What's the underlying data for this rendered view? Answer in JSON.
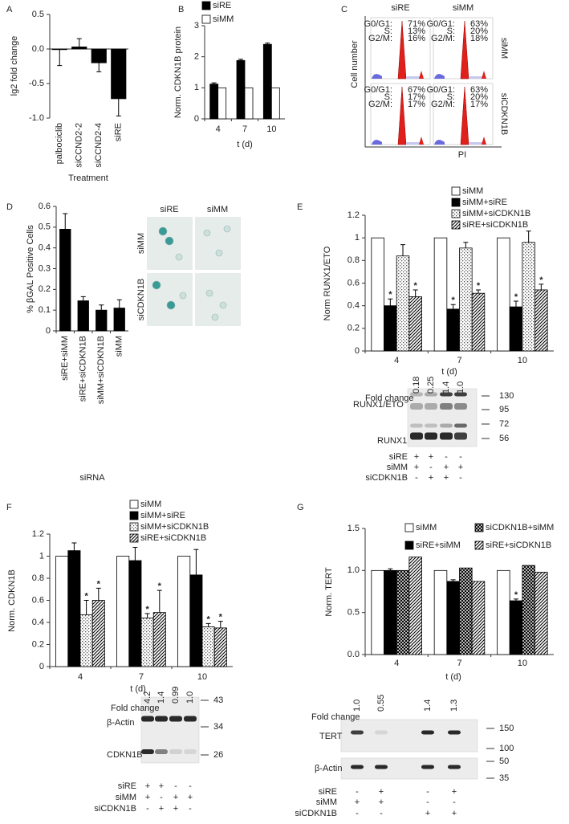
{
  "chart_data": [
    {
      "panel": "A",
      "type": "bar",
      "ylabel": "lg2 fold change",
      "xlabel": "Treatment",
      "categories": [
        "palbociclib",
        "siCCND2-2",
        "siCCND2-4",
        "siRE"
      ],
      "series": [
        {
          "color": "#000000",
          "values": [
            0,
            0.03,
            -0.2,
            -0.72
          ],
          "errors": [
            0.24,
            0.12,
            0.13,
            0.25
          ]
        }
      ],
      "ylim": [
        -1,
        0.5
      ],
      "yticks": [
        0.5,
        {
          "value": 0,
          "label": "0.0"
        },
        -0.5,
        {
          "value": -1,
          "label": "-1.0"
        }
      ]
    },
    {
      "panel": "B",
      "type": "bar",
      "ylabel": "Norm. CDKN1B protein",
      "xlabel": "t (d)",
      "categories": [
        "4",
        "7",
        "10"
      ],
      "series": [
        {
          "name": "siRE",
          "color": "#000000",
          "values": [
            1.12,
            1.88,
            2.4
          ],
          "errors": [
            0.04,
            0.04,
            0.04
          ]
        },
        {
          "name": "siMM",
          "color": "#ffffff",
          "values": [
            1,
            1,
            1
          ]
        }
      ],
      "ylim": [
        0,
        3
      ],
      "yticks": [
        0,
        1,
        2,
        3
      ]
    },
    {
      "panel": "D",
      "type": "bar",
      "ylabel": "% βGAL Positive Cells",
      "xlabel": "siRNA",
      "categories": [
        "siRE+siMM",
        "siRE+siCDKN1B",
        "siMM+siCDKN1B",
        "siMM"
      ],
      "series": [
        {
          "color": "#000000",
          "values": [
            0.49,
            0.145,
            0.1,
            0.11
          ],
          "errors": [
            0.075,
            0.02,
            0.025,
            0.04
          ]
        }
      ],
      "ylim": [
        0,
        0.6
      ],
      "yticks": [
        0,
        0.1,
        0.2,
        0.3,
        0.4,
        0.5,
        0.6
      ]
    },
    {
      "panel": "E",
      "type": "bar",
      "ylabel": "Norm RUNX1/ETO",
      "xlabel": "t (d)",
      "categories": [
        "4",
        "7",
        "10"
      ],
      "series": [
        {
          "name": "siMM",
          "color": "#ffffff",
          "values": [
            1,
            1,
            1
          ]
        },
        {
          "name": "siMM+siRE",
          "color": "#000000",
          "values": [
            0.4,
            0.37,
            0.39
          ],
          "errors": [
            0.06,
            0.04,
            0.05
          ],
          "stars": [
            "*",
            "*",
            "*"
          ]
        },
        {
          "name": "siMM+siCDKN1B",
          "color": "#555555",
          "pattern": "dots",
          "values": [
            0.84,
            0.91,
            0.96
          ],
          "errors": [
            0.1,
            0.05,
            0.1
          ]
        },
        {
          "name": "siRE+siCDKN1B",
          "color": "#000000",
          "pattern": "hatch",
          "values": [
            0.48,
            0.51,
            0.54
          ],
          "errors": [
            0.06,
            0.03,
            0.05
          ],
          "stars": [
            "*",
            "*",
            "*"
          ]
        }
      ],
      "ylim": [
        0,
        1.2
      ],
      "yticks": [
        0,
        0.2,
        0.4,
        0.6,
        0.8,
        1,
        1.2
      ]
    },
    {
      "panel": "F",
      "type": "bar",
      "ylabel": "Norm. CDKN1B",
      "xlabel": "t (d)",
      "categories": [
        "4",
        "7",
        "10"
      ],
      "series": [
        {
          "name": "siMM",
          "color": "#ffffff",
          "values": [
            1,
            1,
            1
          ]
        },
        {
          "name": "siMM+siRE",
          "color": "#000000",
          "values": [
            1.05,
            0.96,
            0.83
          ],
          "errors": [
            0.07,
            0.12,
            0.23
          ]
        },
        {
          "name": "siMM+siCDKN1B",
          "color": "#555555",
          "pattern": "dots",
          "values": [
            0.47,
            0.44,
            0.36
          ],
          "errors": [
            0.13,
            0.04,
            0.03
          ],
          "stars": [
            "*",
            "*",
            "*"
          ]
        },
        {
          "name": "siRE+siCDKN1B",
          "color": "#000000",
          "pattern": "hatch",
          "values": [
            0.6,
            0.49,
            0.35
          ],
          "errors": [
            0.11,
            0.2,
            0.06
          ],
          "stars": [
            "*",
            "*",
            "*"
          ]
        }
      ],
      "ylim": [
        0,
        1.2
      ],
      "yticks": [
        0,
        0.2,
        0.4,
        0.6,
        0.8,
        1,
        1.2
      ]
    },
    {
      "panel": "G",
      "type": "bar",
      "ylabel": "Norm. TERT",
      "xlabel": "t (d)",
      "categories": [
        "4",
        "7",
        "10"
      ],
      "series": [
        {
          "name": "siMM",
          "color": "#ffffff",
          "values": [
            1,
            1,
            1
          ]
        },
        {
          "name": "siRE+siMM",
          "color": "#000000",
          "values": [
            1,
            0.87,
            0.64
          ],
          "errors": [
            0.02,
            0.02,
            0.02
          ],
          "stars": [
            null,
            null,
            "*"
          ]
        },
        {
          "name": "siCDKN1B+siMM",
          "color": "#000000",
          "pattern": "crosshatch",
          "values": [
            1,
            1.03,
            1.06
          ]
        },
        {
          "name": "siRE+siCDKN1B",
          "color": "#000000",
          "pattern": "hatch",
          "values": [
            1.16,
            0.87,
            0.98
          ]
        }
      ],
      "ylim": [
        0,
        1.5
      ],
      "yticks": [
        {
          "value": 0,
          "label": "0.0"
        },
        0.5,
        {
          "value": 1,
          "label": "1.0"
        },
        1.5
      ]
    }
  ],
  "flow_cytometry": {
    "panel": "C",
    "columns": [
      "siRE",
      "siMM"
    ],
    "rows": [
      "siMM",
      "siCDKN1B"
    ],
    "ylabel": "Cell number",
    "xlabel": "PI",
    "phases": [
      "G0/G1:",
      "S:",
      "G2/M:"
    ],
    "percents": [
      [
        "71%",
        "13%",
        "16%"
      ],
      [
        "63%",
        "20%",
        "18%"
      ],
      [
        "67%",
        "17%",
        "17%"
      ],
      [
        "63%",
        "20%",
        "17%"
      ]
    ]
  },
  "micrographs": {
    "columns": [
      "siRE",
      "siMM"
    ],
    "rows": [
      "siMM",
      "siCDKN1B"
    ]
  },
  "blots": [
    {
      "fold_label": "Fold change",
      "fold_values": [
        "0.18",
        "0.25",
        "1.4",
        "1.0"
      ],
      "band_labels": [
        "RUNX1/ETO",
        "RUNX1"
      ],
      "markers": [
        130,
        95,
        72,
        56
      ],
      "conditions": [
        {
          "name": "siRE",
          "signs": [
            "+",
            "+",
            "-",
            "-"
          ]
        },
        {
          "name": "siMM",
          "signs": [
            "+",
            "-",
            "+",
            "+"
          ]
        },
        {
          "name": "siCDKN1B",
          "signs": [
            "-",
            "+",
            "+",
            "-"
          ]
        }
      ]
    },
    {
      "fold_label": "Fold change",
      "fold_values": [
        "4.2",
        "1.4",
        "0.99",
        "1.0"
      ],
      "band_labels": [
        "β-Actin",
        "CDKN1B"
      ],
      "markers": [
        43,
        34,
        26
      ],
      "conditions": [
        {
          "name": "siRE",
          "signs": [
            "+",
            "+",
            "-",
            "-"
          ]
        },
        {
          "name": "siMM",
          "signs": [
            "+",
            "-",
            "+",
            "+"
          ]
        },
        {
          "name": "siCDKN1B",
          "signs": [
            "-",
            "+",
            "+",
            "-"
          ]
        }
      ]
    },
    {
      "fold_label": "Fold change",
      "fold_values": [
        "1.0",
        "0.55",
        "1.4",
        "1.3"
      ],
      "band_labels": [
        "TERT",
        "β-Actin"
      ],
      "markers": [
        150,
        100,
        50,
        35
      ],
      "conditions": [
        {
          "name": "siRE",
          "signs": [
            "-",
            "+",
            "-",
            "+"
          ]
        },
        {
          "name": "siMM",
          "signs": [
            "+",
            "+",
            "-",
            "-"
          ]
        },
        {
          "name": "siCDKN1B",
          "signs": [
            "-",
            "-",
            "+",
            "+"
          ]
        }
      ]
    }
  ]
}
